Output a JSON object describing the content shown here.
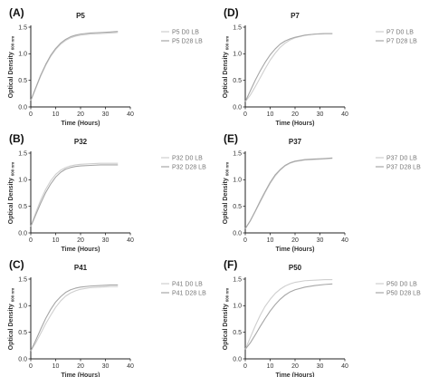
{
  "colors": {
    "series_d0": "#cfcfcf",
    "series_d28": "#a6a6a6",
    "axis": "#222222",
    "text": "#333333",
    "legend_text": "#777777"
  },
  "chart_data": [
    {
      "type": "line",
      "letter": "(A)",
      "title": "P5",
      "xlabel": "Time (Hours)",
      "ylabel": "Optical Density",
      "ylabel_sub": "600 nm",
      "xlim": [
        0,
        40
      ],
      "ylim": [
        0.0,
        1.5
      ],
      "xticks": [
        "0",
        "10",
        "20",
        "30",
        "40"
      ],
      "yticks": [
        "0.0",
        "0.5",
        "1.0",
        "1.5"
      ],
      "legend_position": "right",
      "series": [
        {
          "name": "P5 D0 LB",
          "x": [
            0,
            2,
            4,
            6,
            8,
            10,
            12,
            14,
            16,
            18,
            20,
            24,
            28,
            32,
            35
          ],
          "y": [
            0.12,
            0.35,
            0.58,
            0.78,
            0.95,
            1.08,
            1.18,
            1.25,
            1.3,
            1.33,
            1.35,
            1.37,
            1.38,
            1.39,
            1.4
          ]
        },
        {
          "name": "P5 D28 LB",
          "x": [
            0,
            2,
            4,
            6,
            8,
            10,
            12,
            14,
            16,
            18,
            20,
            24,
            28,
            32,
            35
          ],
          "y": [
            0.12,
            0.36,
            0.6,
            0.8,
            0.97,
            1.1,
            1.2,
            1.27,
            1.32,
            1.35,
            1.37,
            1.39,
            1.4,
            1.41,
            1.42
          ]
        }
      ]
    },
    {
      "type": "line",
      "letter": "(D)",
      "title": "P7",
      "xlabel": "Time (Hours)",
      "ylabel": "Optical Density",
      "ylabel_sub": "600 nm",
      "xlim": [
        0,
        40
      ],
      "ylim": [
        0.0,
        1.5
      ],
      "xticks": [
        "0",
        "10",
        "20",
        "30",
        "40"
      ],
      "yticks": [
        "0.0",
        "0.5",
        "1.0",
        "1.5"
      ],
      "legend_position": "right",
      "series": [
        {
          "name": "P7 D0 LB",
          "x": [
            0,
            2,
            4,
            6,
            8,
            10,
            12,
            14,
            16,
            18,
            20,
            24,
            28,
            32,
            35
          ],
          "y": [
            0.1,
            0.22,
            0.38,
            0.55,
            0.72,
            0.88,
            1.01,
            1.12,
            1.2,
            1.26,
            1.3,
            1.35,
            1.37,
            1.38,
            1.38
          ]
        },
        {
          "name": "P7 D28 LB",
          "x": [
            0,
            2,
            4,
            6,
            8,
            10,
            12,
            14,
            16,
            18,
            20,
            24,
            28,
            32,
            35
          ],
          "y": [
            0.1,
            0.3,
            0.5,
            0.68,
            0.84,
            0.98,
            1.09,
            1.18,
            1.24,
            1.28,
            1.31,
            1.35,
            1.37,
            1.38,
            1.38
          ]
        }
      ]
    },
    {
      "type": "line",
      "letter": "(B)",
      "title": "P32",
      "xlabel": "Time (Hours)",
      "ylabel": "Optical Density",
      "ylabel_sub": "600 nm",
      "xlim": [
        0,
        40
      ],
      "ylim": [
        0.0,
        1.5
      ],
      "xticks": [
        "0",
        "10",
        "20",
        "30",
        "40"
      ],
      "yticks": [
        "0.0",
        "0.5",
        "1.0",
        "1.5"
      ],
      "legend_position": "right",
      "series": [
        {
          "name": "P32 D0 LB",
          "x": [
            0,
            2,
            4,
            6,
            8,
            10,
            12,
            14,
            16,
            18,
            20,
            24,
            28,
            32,
            35
          ],
          "y": [
            0.12,
            0.38,
            0.62,
            0.82,
            0.98,
            1.1,
            1.18,
            1.23,
            1.26,
            1.28,
            1.29,
            1.3,
            1.31,
            1.31,
            1.31
          ]
        },
        {
          "name": "P32 D28 LB",
          "x": [
            0,
            2,
            4,
            6,
            8,
            10,
            12,
            14,
            16,
            18,
            20,
            24,
            28,
            32,
            35
          ],
          "y": [
            0.12,
            0.34,
            0.56,
            0.76,
            0.92,
            1.05,
            1.14,
            1.2,
            1.23,
            1.25,
            1.26,
            1.27,
            1.28,
            1.28,
            1.28
          ]
        }
      ]
    },
    {
      "type": "line",
      "letter": "(E)",
      "title": "P37",
      "xlabel": "Time (Hours)",
      "ylabel": "Optical Density",
      "ylabel_sub": "600 nm",
      "xlim": [
        0,
        40
      ],
      "ylim": [
        0.0,
        1.5
      ],
      "xticks": [
        "0",
        "10",
        "20",
        "30",
        "40"
      ],
      "yticks": [
        "0.0",
        "0.5",
        "1.0",
        "1.5"
      ],
      "legend_position": "right",
      "series": [
        {
          "name": "P37 D0 LB",
          "x": [
            0,
            2,
            4,
            6,
            8,
            10,
            12,
            14,
            16,
            18,
            20,
            24,
            28,
            32,
            35
          ],
          "y": [
            0.08,
            0.22,
            0.4,
            0.58,
            0.76,
            0.93,
            1.07,
            1.18,
            1.26,
            1.31,
            1.34,
            1.37,
            1.38,
            1.39,
            1.4
          ]
        },
        {
          "name": "P37 D28 LB",
          "x": [
            0,
            2,
            4,
            6,
            8,
            10,
            12,
            14,
            16,
            18,
            20,
            24,
            28,
            32,
            35
          ],
          "y": [
            0.08,
            0.23,
            0.41,
            0.6,
            0.78,
            0.95,
            1.09,
            1.19,
            1.27,
            1.32,
            1.35,
            1.38,
            1.39,
            1.4,
            1.41
          ]
        }
      ]
    },
    {
      "type": "line",
      "letter": "(C)",
      "title": "P41",
      "xlabel": "Time (Hours)",
      "ylabel": "Optical Density",
      "ylabel_sub": "600 nm",
      "xlim": [
        0,
        40
      ],
      "ylim": [
        0.0,
        1.5
      ],
      "xticks": [
        "0",
        "10",
        "20",
        "30",
        "40"
      ],
      "yticks": [
        "0.0",
        "0.5",
        "1.0",
        "1.5"
      ],
      "legend_position": "right",
      "series": [
        {
          "name": "P41 D0 LB",
          "x": [
            0,
            2,
            4,
            6,
            8,
            10,
            12,
            14,
            16,
            18,
            20,
            24,
            28,
            32,
            35
          ],
          "y": [
            0.15,
            0.3,
            0.48,
            0.66,
            0.82,
            0.97,
            1.09,
            1.18,
            1.24,
            1.28,
            1.31,
            1.34,
            1.35,
            1.36,
            1.36
          ]
        },
        {
          "name": "P41 D28 LB",
          "x": [
            0,
            2,
            4,
            6,
            8,
            10,
            12,
            14,
            16,
            18,
            20,
            24,
            28,
            32,
            35
          ],
          "y": [
            0.15,
            0.35,
            0.56,
            0.76,
            0.93,
            1.07,
            1.17,
            1.25,
            1.3,
            1.33,
            1.35,
            1.37,
            1.38,
            1.39,
            1.39
          ]
        }
      ]
    },
    {
      "type": "line",
      "letter": "(F)",
      "title": "P50",
      "xlabel": "Time (Hours)",
      "ylabel": "Optical Density",
      "ylabel_sub": "600 nm",
      "xlim": [
        0,
        40
      ],
      "ylim": [
        0.0,
        1.5
      ],
      "xticks": [
        "0",
        "10",
        "20",
        "30",
        "40"
      ],
      "yticks": [
        "0.0",
        "0.5",
        "1.0",
        "1.5"
      ],
      "legend_position": "right",
      "series": [
        {
          "name": "P50 D0 LB",
          "x": [
            0,
            2,
            4,
            6,
            8,
            10,
            12,
            14,
            16,
            18,
            20,
            24,
            28,
            32,
            35
          ],
          "y": [
            0.18,
            0.4,
            0.62,
            0.82,
            0.99,
            1.12,
            1.23,
            1.31,
            1.37,
            1.41,
            1.44,
            1.47,
            1.48,
            1.49,
            1.49
          ]
        },
        {
          "name": "P50 D28 LB",
          "x": [
            0,
            2,
            4,
            6,
            8,
            10,
            12,
            14,
            16,
            18,
            20,
            24,
            28,
            32,
            35
          ],
          "y": [
            0.18,
            0.3,
            0.45,
            0.61,
            0.76,
            0.9,
            1.02,
            1.12,
            1.2,
            1.26,
            1.3,
            1.35,
            1.38,
            1.4,
            1.41
          ]
        }
      ]
    }
  ]
}
